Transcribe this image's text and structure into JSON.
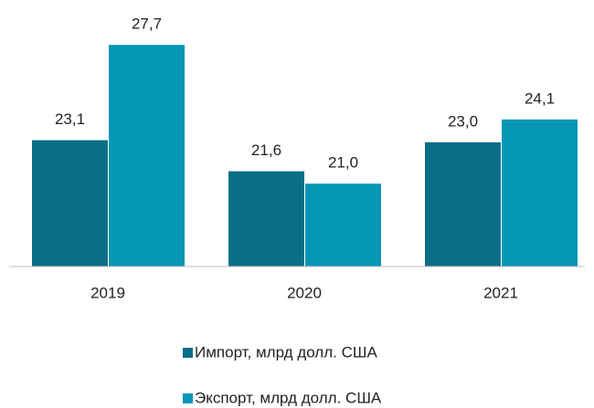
{
  "chart_data": {
    "type": "bar",
    "categories": [
      "2019",
      "2020",
      "2021"
    ],
    "series": [
      {
        "name": "Импорт, млрд долл. США",
        "color": "#0b6e88",
        "values": [
          23.1,
          21.6,
          23.0
        ],
        "value_labels": [
          "23,1",
          "21,6",
          "23,0"
        ]
      },
      {
        "name": "Экспорт, млрд долл. США",
        "color": "#0697b6",
        "values": [
          27.7,
          21.0,
          24.1
        ],
        "value_labels": [
          "27,7",
          "21,0",
          "24,1"
        ]
      }
    ],
    "ylim": [
      17,
      30
    ]
  }
}
